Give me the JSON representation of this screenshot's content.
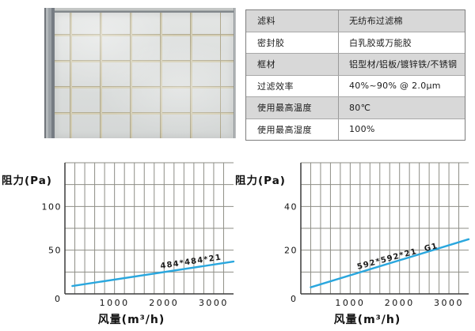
{
  "spec_table": {
    "rows": [
      {
        "label": "滤料",
        "value": "无纺布过滤棉"
      },
      {
        "label": "密封胶",
        "value": "白乳胶或万能胶"
      },
      {
        "label": "框材",
        "value": "铝型材/铝板/镀锌铁/不锈钢"
      },
      {
        "label": "过滤效率",
        "value": "40%~90% @ 2.0μm"
      },
      {
        "label": "使用最高温度",
        "value": "80℃"
      },
      {
        "label": "使用最高湿度",
        "value": "100%"
      }
    ]
  },
  "chart_data": [
    {
      "type": "line",
      "title": "",
      "ylabel": "阻力(Pa)",
      "xlabel": "风量(m³/h)",
      "xlim": [
        0,
        3400
      ],
      "ylim": [
        0,
        150
      ],
      "x_ticks": [
        1000,
        2000,
        3000
      ],
      "y_ticks": [
        50,
        100
      ],
      "origin_label": "0",
      "x_grid_step": 200,
      "y_grid_step": 25,
      "grid": true,
      "legend_position": "on-line",
      "line_color": "#2aa7de",
      "series": [
        {
          "name": "484*484*21",
          "x": [
            150,
            3400
          ],
          "y": [
            9,
            37
          ]
        }
      ]
    },
    {
      "type": "line",
      "title": "",
      "ylabel": "阻力(Pa)",
      "xlabel": "风量(m³/h)",
      "xlim": [
        0,
        3400
      ],
      "ylim": [
        0,
        60
      ],
      "x_ticks": [
        1000,
        2000,
        3000
      ],
      "y_ticks": [
        20,
        40
      ],
      "origin_label": "0",
      "x_grid_step": 200,
      "y_grid_step": 10,
      "grid": true,
      "legend_position": "on-line",
      "line_color": "#2aa7de",
      "series": [
        {
          "name": "592*592*21 G1",
          "x": [
            200,
            3400
          ],
          "y": [
            3,
            25
          ]
        }
      ]
    }
  ],
  "colors": {
    "accent_line": "#2aa7de",
    "grid_line": "#8e8e86",
    "axis_line": "#3c3c3c",
    "table_alt_row": "#d8d8d8",
    "table_border": "#7e7e7e",
    "filter_wire": "#c6bfa4",
    "frame_gray": "#8a9096",
    "text": "#1b1b1b"
  }
}
